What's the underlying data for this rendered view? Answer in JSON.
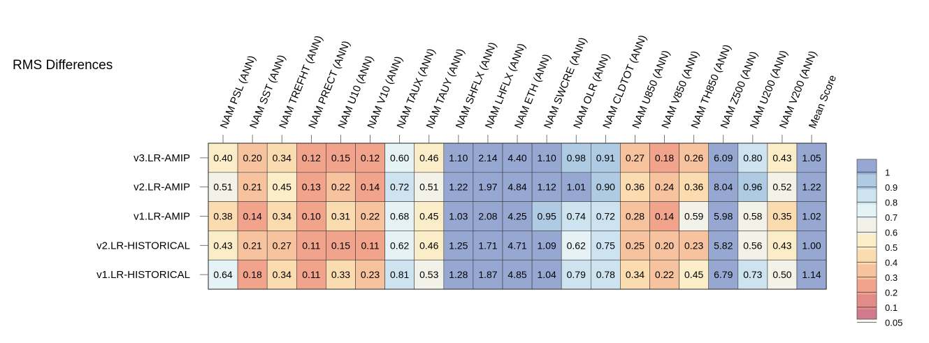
{
  "title": "RMS Differences",
  "chart_data": {
    "type": "heatmap",
    "title": "RMS Differences",
    "columns": [
      "NAM PSL (ANN)",
      "NAM SST (ANN)",
      "NAM TREFHT (ANN)",
      "NAM PRECT (ANN)",
      "NAM U10 (ANN)",
      "NAM V10 (ANN)",
      "NAM TAUX (ANN)",
      "NAM TAUY (ANN)",
      "NAM SHFLX (ANN)",
      "NAM LHFLX (ANN)",
      "NAM ETH (ANN)",
      "NAM SWCRE (ANN)",
      "NAM OLR (ANN)",
      "NAM CLDTOT (ANN)",
      "NAM U850 (ANN)",
      "NAM V850 (ANN)",
      "NAM TH850 (ANN)",
      "NAM Z500 (ANN)",
      "NAM U200 (ANN)",
      "NAM V200 (ANN)",
      "Mean Score"
    ],
    "rows": [
      "v3.LR-AMIP",
      "v2.LR-AMIP",
      "v1.LR-AMIP",
      "v2.LR-HISTORICAL",
      "v1.LR-HISTORICAL"
    ],
    "values": [
      [
        0.4,
        0.2,
        0.34,
        0.12,
        0.15,
        0.12,
        0.6,
        0.46,
        1.1,
        2.14,
        4.4,
        1.1,
        0.98,
        0.91,
        0.27,
        0.18,
        0.26,
        6.09,
        0.8,
        0.43,
        1.05
      ],
      [
        0.51,
        0.21,
        0.45,
        0.13,
        0.22,
        0.14,
        0.72,
        0.51,
        1.22,
        1.97,
        4.84,
        1.12,
        1.01,
        0.9,
        0.36,
        0.24,
        0.36,
        8.04,
        0.96,
        0.52,
        1.22
      ],
      [
        0.38,
        0.14,
        0.34,
        0.1,
        0.31,
        0.22,
        0.68,
        0.45,
        1.03,
        2.08,
        4.25,
        0.95,
        0.74,
        0.72,
        0.28,
        0.14,
        0.59,
        5.98,
        0.58,
        0.35,
        1.02
      ],
      [
        0.43,
        0.21,
        0.27,
        0.11,
        0.15,
        0.11,
        0.62,
        0.46,
        1.25,
        1.71,
        4.71,
        1.09,
        0.62,
        0.75,
        0.25,
        0.2,
        0.23,
        5.82,
        0.56,
        0.43,
        1.0
      ],
      [
        0.64,
        0.18,
        0.34,
        0.11,
        0.33,
        0.23,
        0.81,
        0.53,
        1.28,
        1.87,
        4.85,
        1.04,
        0.79,
        0.78,
        0.34,
        0.22,
        0.45,
        6.79,
        0.73,
        0.5,
        1.14
      ]
    ],
    "labels": [
      [
        "0.40",
        "0.20",
        "0.34",
        "0.12",
        "0.15",
        "0.12",
        "0.60",
        "0.46",
        "1.10",
        "2.14",
        "4.40",
        "1.10",
        "0.98",
        "0.91",
        "0.27",
        "0.18",
        "0.26",
        "6.09",
        "0.80",
        "0.43",
        "1.05"
      ],
      [
        "0.51",
        "0.21",
        "0.45",
        "0.13",
        "0.22",
        "0.14",
        "0.72",
        "0.51",
        "1.22",
        "1.97",
        "4.84",
        "1.12",
        "1.01",
        "0.90",
        "0.36",
        "0.24",
        "0.36",
        "8.04",
        "0.96",
        "0.52",
        "1.22"
      ],
      [
        "0.38",
        "0.14",
        "0.34",
        "0.10",
        "0.31",
        "0.22",
        "0.68",
        "0.45",
        "1.03",
        "2.08",
        "4.25",
        "0.95",
        "0.74",
        "0.72",
        "0.28",
        "0.14",
        "0.59",
        "5.98",
        "0.58",
        "0.35",
        "1.02"
      ],
      [
        "0.43",
        "0.21",
        "0.27",
        "0.11",
        "0.15",
        "0.11",
        "0.62",
        "0.46",
        "1.25",
        "1.71",
        "4.71",
        "1.09",
        "0.62",
        "0.75",
        "0.25",
        "0.20",
        "0.23",
        "5.82",
        "0.56",
        "0.43",
        "1.00"
      ],
      [
        "0.64",
        "0.18",
        "0.34",
        "0.11",
        "0.33",
        "0.23",
        "0.81",
        "0.53",
        "1.28",
        "1.87",
        "4.85",
        "1.04",
        "0.79",
        "0.78",
        "0.34",
        "0.22",
        "0.45",
        "6.79",
        "0.73",
        "0.50",
        "1.14"
      ]
    ],
    "colorbar": {
      "ticks": [
        "1",
        "0.9",
        "0.8",
        "0.7",
        "0.6",
        "0.5",
        "0.4",
        "0.3",
        "0.2",
        "0.1",
        "0.05"
      ],
      "boundaries": [
        1.0,
        0.9,
        0.8,
        0.7,
        0.6,
        0.5,
        0.4,
        0.3,
        0.2,
        0.1,
        0.05
      ],
      "colors": [
        "#96a8d2",
        "#afcbe3",
        "#cde3ef",
        "#e6f3f6",
        "#f3f2e9",
        "#fbedc8",
        "#fbdbb0",
        "#f7c29e",
        "#f2a38c",
        "#e18c88",
        "#d07a8d"
      ],
      "placement": "right"
    }
  }
}
